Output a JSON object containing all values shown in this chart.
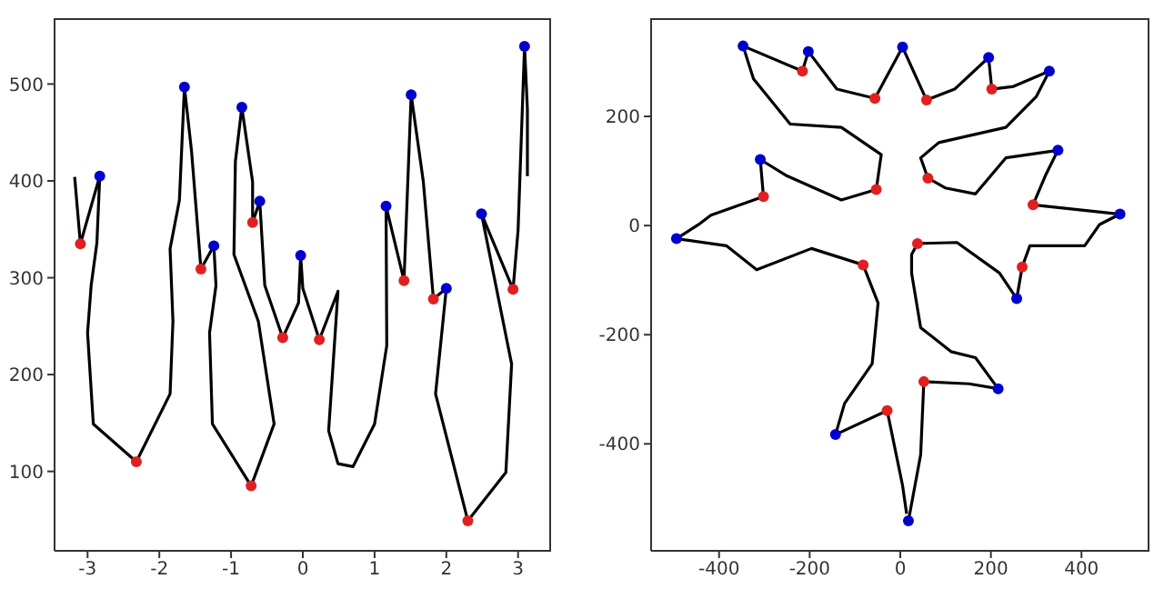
{
  "chart_data": [
    {
      "type": "line",
      "xlim": [
        -3.46,
        3.46
      ],
      "ylim": [
        18,
        568
      ],
      "xticks": [
        -3,
        -2,
        -1,
        0,
        1,
        2,
        3
      ],
      "yticks": [
        100,
        200,
        300,
        400,
        500
      ],
      "grid": false,
      "legend": false,
      "series": [
        {
          "type": "line",
          "color": "#000000",
          "marker": "none",
          "line_style": "solid",
          "x": [
            -3.18,
            -3.1,
            -2.83,
            -2.87,
            -2.95,
            -3.0,
            -2.92,
            -2.32,
            -1.85,
            -1.81,
            -1.85,
            -1.72,
            -1.65,
            -1.55,
            -1.42,
            -1.24,
            -1.21,
            -1.3,
            -1.26,
            -0.72,
            -0.4,
            -0.62,
            -0.96,
            -0.94,
            -0.85,
            -0.7,
            -0.7,
            -0.6,
            -0.53,
            -0.28,
            -0.06,
            -0.03,
            0.0,
            0.23,
            0.49,
            0.36,
            0.49,
            0.7,
            1.0,
            1.17,
            1.16,
            1.41,
            1.51,
            1.68,
            1.82,
            2.0,
            1.85,
            2.3,
            2.83,
            2.91,
            2.49,
            2.93,
            3.0,
            3.09,
            3.13,
            3.13
          ],
          "values": [
            404,
            335,
            405,
            336,
            292,
            243,
            149,
            110,
            180,
            255,
            330,
            380,
            497,
            430,
            309,
            333,
            292,
            243,
            149,
            85,
            149,
            255,
            324,
            420,
            476,
            399,
            357,
            379,
            292,
            238,
            274,
            323,
            289,
            236,
            286,
            142,
            108,
            105,
            149,
            230,
            374,
            297,
            489,
            399,
            278,
            289,
            180,
            49,
            99,
            211,
            366,
            288,
            349,
            539,
            474,
            405
          ]
        },
        {
          "type": "scatter",
          "color": "#e02020",
          "marker": "circle",
          "x": [
            -3.1,
            -2.32,
            -1.42,
            -0.72,
            -0.7,
            -0.28,
            0.23,
            1.41,
            1.82,
            2.3,
            2.93
          ],
          "values": [
            335,
            110,
            309,
            85,
            357,
            238,
            236,
            297,
            278,
            49,
            288
          ]
        },
        {
          "type": "scatter",
          "color": "#0000cc",
          "marker": "circle",
          "x": [
            -2.83,
            -1.65,
            -1.24,
            -0.85,
            -0.6,
            -0.03,
            1.16,
            1.51,
            2.0,
            2.49,
            3.09
          ],
          "values": [
            405,
            497,
            333,
            476,
            379,
            323,
            374,
            489,
            289,
            366,
            539
          ]
        }
      ]
    },
    {
      "type": "line",
      "xlim": [
        -550,
        550
      ],
      "ylim": [
        -596,
        380
      ],
      "xticks": [
        -400,
        -200,
        0,
        200,
        400
      ],
      "yticks": [
        -400,
        -200,
        0,
        200
      ],
      "grid": false,
      "legend": false,
      "series": [
        {
          "type": "line",
          "color": "#000000",
          "marker": "none",
          "line_style": "solid",
          "x": [
            18,
            45,
            52,
            152,
            216,
            166,
            112,
            45,
            25,
            25,
            38,
            125,
            219,
            257,
            269,
            286,
            407,
            440,
            485,
            293,
            320,
            348,
            233,
            166,
            99,
            61,
            45,
            85,
            233,
            300,
            329,
            250,
            202,
            195,
            120,
            58,
            5,
            -56,
            -140,
            -203,
            -216,
            -347,
            -324,
            -243,
            -130,
            -42,
            -53,
            -130,
            -250,
            -309,
            -302,
            -418,
            -445,
            -494,
            -384,
            -317,
            -196,
            -82,
            -49,
            -62,
            -123,
            -143,
            -29,
            5,
            14
          ],
          "values": [
            -541,
            -420,
            -286,
            -290,
            -299,
            -242,
            -231,
            -187,
            -87,
            -53,
            -33,
            -31,
            -87,
            -134,
            -76,
            -37,
            -37,
            2,
            21,
            38,
            91,
            138,
            124,
            58,
            69,
            87,
            124,
            152,
            180,
            236,
            283,
            255,
            250,
            308,
            250,
            230,
            327,
            233,
            250,
            319,
            283,
            329,
            269,
            186,
            180,
            130,
            66,
            47,
            91,
            121,
            53,
            19,
            2,
            -24,
            -37,
            -81,
            -42,
            -72,
            -142,
            -253,
            -326,
            -383,
            -339,
            -476,
            -528
          ]
        },
        {
          "type": "scatter",
          "color": "#e02020",
          "marker": "circle",
          "x": [
            -216,
            -56,
            58,
            202,
            -302,
            -53,
            61,
            293,
            -82,
            38,
            269,
            52,
            -29
          ],
          "values": [
            283,
            233,
            230,
            250,
            53,
            66,
            87,
            38,
            -72,
            -33,
            -76,
            -286,
            -339
          ]
        },
        {
          "type": "scatter",
          "color": "#0000cc",
          "marker": "circle",
          "x": [
            -347,
            -203,
            5,
            195,
            329,
            348,
            485,
            -309,
            -494,
            257,
            216,
            -143,
            18
          ],
          "values": [
            329,
            319,
            327,
            308,
            283,
            138,
            21,
            121,
            -24,
            -134,
            -299,
            -383,
            -541
          ]
        }
      ]
    }
  ]
}
